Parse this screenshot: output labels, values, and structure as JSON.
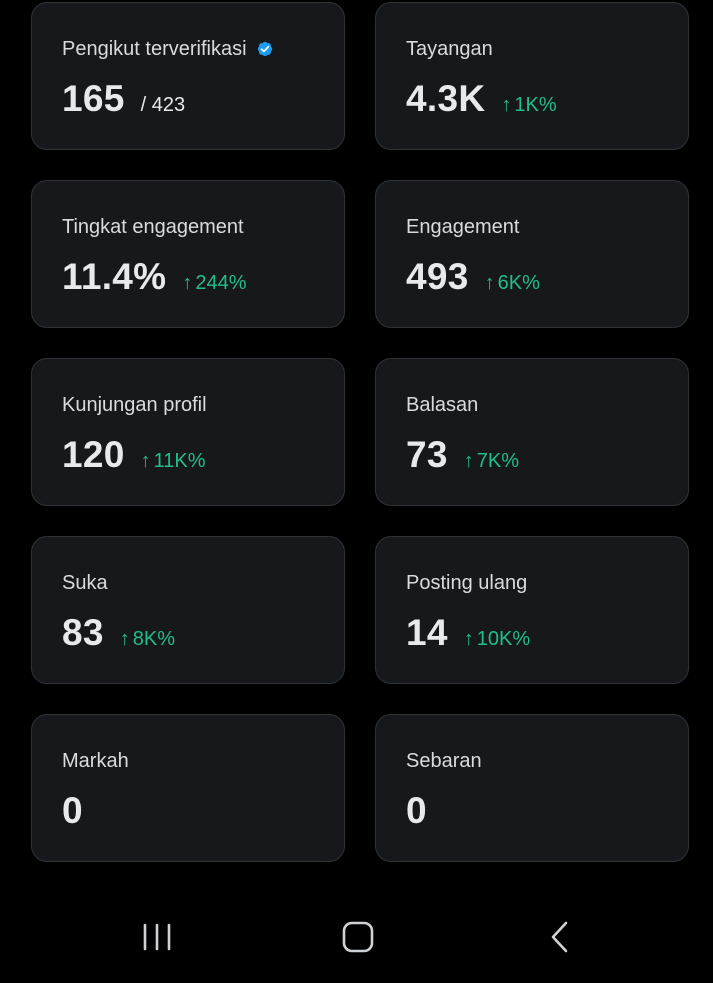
{
  "accent_color": "#21bd8d",
  "verified_color": "#1d9bf0",
  "cards": [
    {
      "name": "verified-followers",
      "label": "Pengikut terverifikasi",
      "value": "165",
      "total": "/ 423",
      "change": "",
      "verified": true
    },
    {
      "name": "impressions",
      "label": "Tayangan",
      "value": "4.3K",
      "total": "",
      "change": "1K%"
    },
    {
      "name": "engagement-rate",
      "label": "Tingkat engagement",
      "value": "11.4%",
      "total": "",
      "change": "244%"
    },
    {
      "name": "engagements",
      "label": "Engagement",
      "value": "493",
      "total": "",
      "change": "6K%"
    },
    {
      "name": "profile-visits",
      "label": "Kunjungan profil",
      "value": "120",
      "total": "",
      "change": "11K%"
    },
    {
      "name": "replies",
      "label": "Balasan",
      "value": "73",
      "total": "",
      "change": "7K%"
    },
    {
      "name": "likes",
      "label": "Suka",
      "value": "83",
      "total": "",
      "change": "8K%"
    },
    {
      "name": "reposts",
      "label": "Posting ulang",
      "value": "14",
      "total": "",
      "change": "10K%"
    },
    {
      "name": "bookmarks",
      "label": "Markah",
      "value": "0",
      "total": "",
      "change": ""
    },
    {
      "name": "shares",
      "label": "Sebaran",
      "value": "0",
      "total": "",
      "change": ""
    }
  ],
  "nav": {
    "recents_icon": "recents-icon",
    "home_icon": "home-icon",
    "back_icon": "back-icon"
  }
}
